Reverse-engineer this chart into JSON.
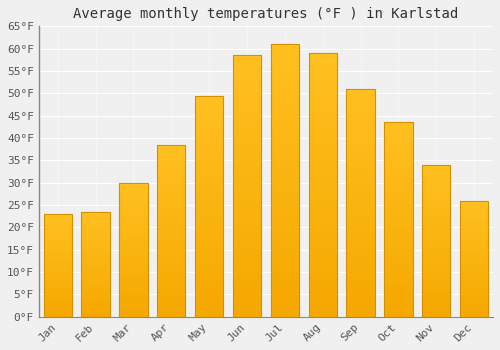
{
  "title": "Average monthly temperatures (°F ) in Karlstad",
  "months": [
    "Jan",
    "Feb",
    "Mar",
    "Apr",
    "May",
    "Jun",
    "Jul",
    "Aug",
    "Sep",
    "Oct",
    "Nov",
    "Dec"
  ],
  "values": [
    23,
    23.5,
    30,
    38.5,
    49.5,
    58.5,
    61,
    59,
    51,
    43.5,
    34,
    26
  ],
  "bar_color": "#FFC020",
  "bar_color_dark": "#F5A800",
  "ylim": [
    0,
    65
  ],
  "yticks": [
    0,
    5,
    10,
    15,
    20,
    25,
    30,
    35,
    40,
    45,
    50,
    55,
    60,
    65
  ],
  "ytick_labels": [
    "0°F",
    "5°F",
    "10°F",
    "15°F",
    "20°F",
    "25°F",
    "30°F",
    "35°F",
    "40°F",
    "45°F",
    "50°F",
    "55°F",
    "60°F",
    "65°F"
  ],
  "background_color": "#f0f0f0",
  "grid_color": "#ffffff",
  "title_fontsize": 10,
  "tick_fontsize": 8,
  "bar_edge_color": "#D49000",
  "bar_width": 0.75
}
